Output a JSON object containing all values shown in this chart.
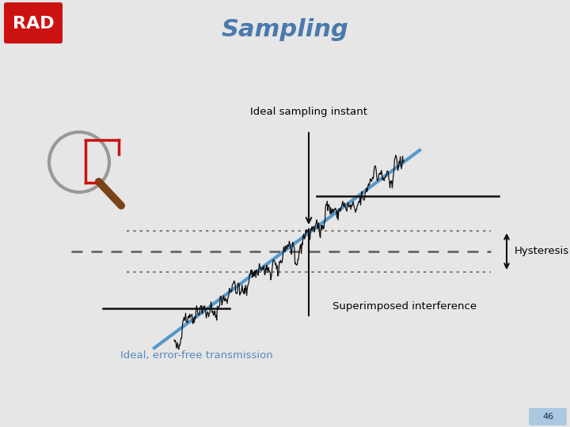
{
  "title": "Sampling",
  "title_color": "#4a7aad",
  "title_fontsize": 22,
  "bg_color": "#e6e6e6",
  "label_ideal_sampling": "Ideal sampling instant",
  "label_hysteresis": "Hysteresis",
  "label_superimposed": "Superimposed interference",
  "label_ideal_free": "Ideal, error-free transmission",
  "label_ideal_free_color": "#5588bb",
  "page_number": "46",
  "page_bg_color": "#aac8e0",
  "page_text_color": "#1a2a4a",
  "rad_red": "#cc1111",
  "noise_seed": 42,
  "ideal_line_color": "#5599cc",
  "signal_color": "#111111",
  "dotted_color": "#666666",
  "solid_color": "#111111",
  "arrow_color": "#111111",
  "magnifier_color": "#999999",
  "handle_color": "#7a4418"
}
